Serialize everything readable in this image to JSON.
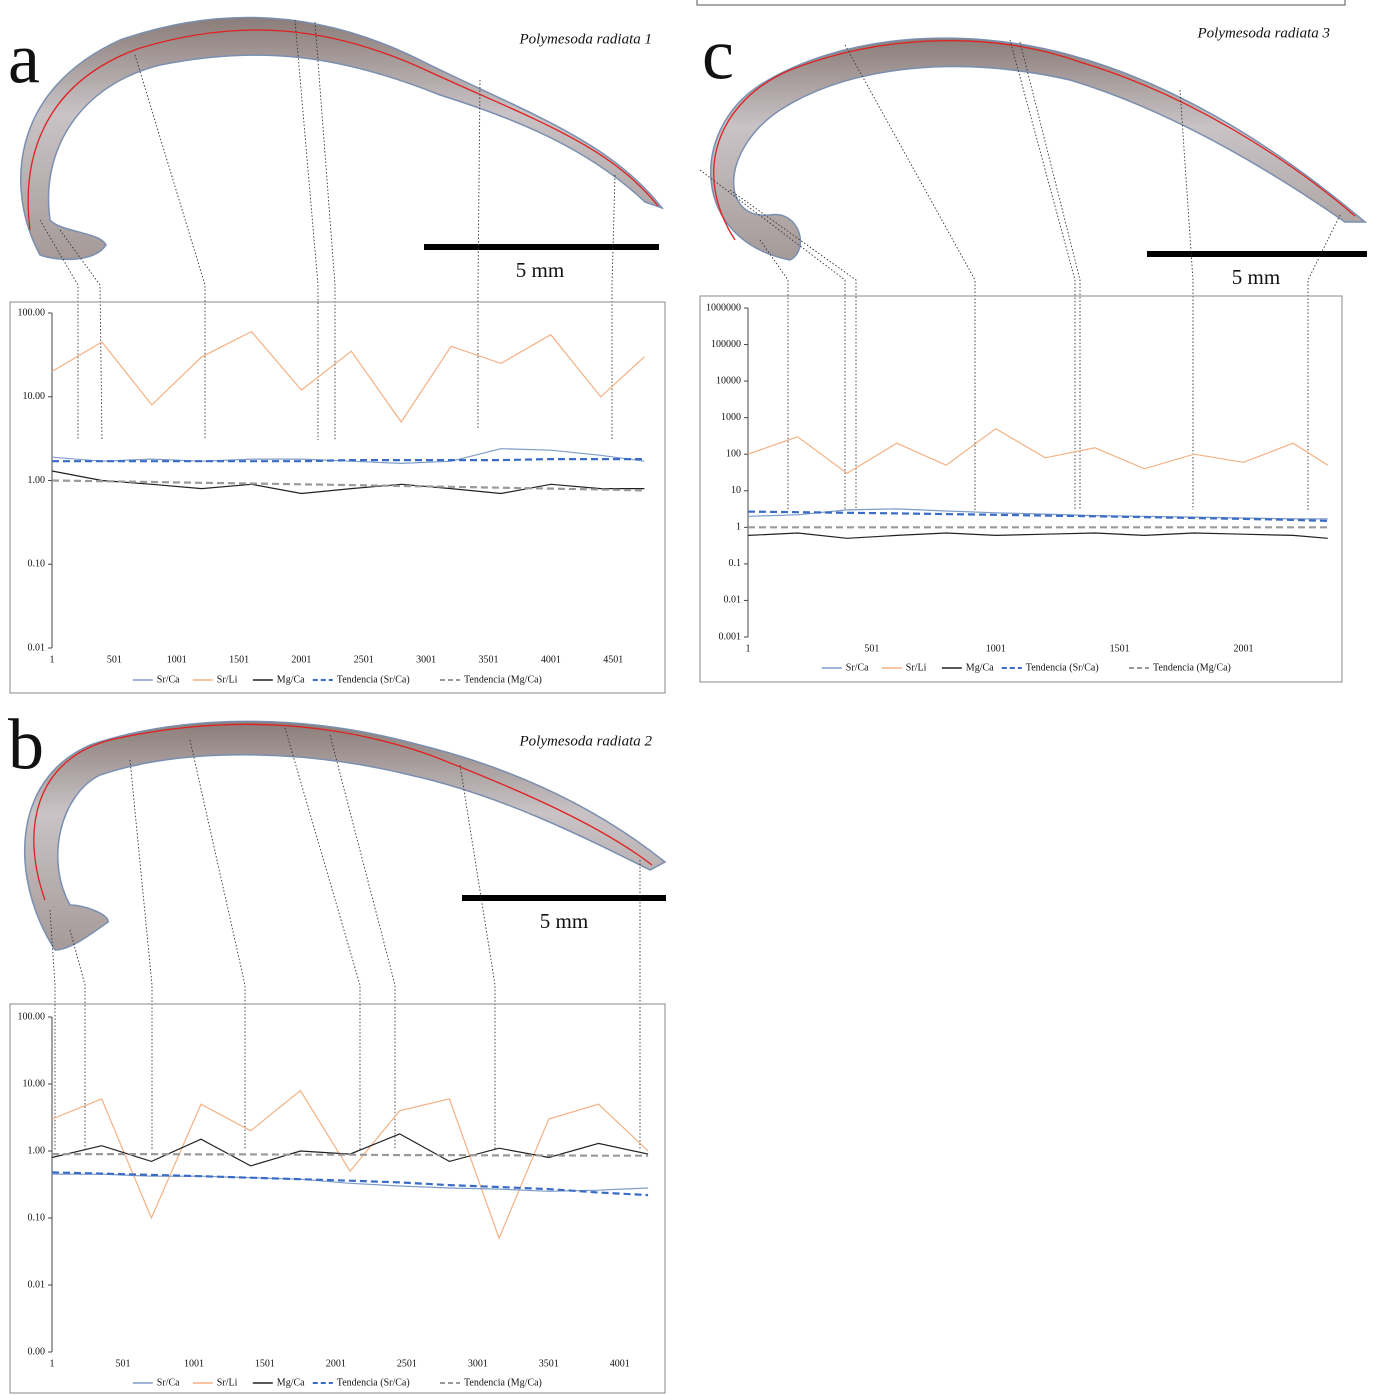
{
  "chart_data": [
    {
      "type": "line",
      "panel": "a",
      "specimen": "Polymesoda radiata 1",
      "scale_label": "5 mm",
      "yscale": "log",
      "xlim": [
        1,
        4780
      ],
      "ylim": [
        0.01,
        100
      ],
      "yticks": [
        {
          "value": 0.01,
          "label": "0.01"
        },
        {
          "value": 0.1,
          "label": "0.10"
        },
        {
          "value": 1,
          "label": "1.00"
        },
        {
          "value": 10,
          "label": "10.00"
        },
        {
          "value": 100,
          "label": "100.00"
        }
      ],
      "xticks": [
        1,
        501,
        1001,
        1501,
        2001,
        2501,
        3001,
        3501,
        4001,
        4501
      ],
      "x": [
        1,
        401,
        801,
        1201,
        1601,
        2001,
        2401,
        2801,
        3201,
        3601,
        4001,
        4401,
        4751
      ],
      "series": [
        {
          "name": "Sr/Ca",
          "color": "#7f9cc9",
          "style": "solid",
          "values": [
            1.9,
            1.7,
            1.8,
            1.7,
            1.8,
            1.8,
            1.7,
            1.6,
            1.7,
            2.4,
            2.3,
            2.0,
            1.7
          ]
        },
        {
          "name": "Sr/Li",
          "color": "#f4b183",
          "style": "solid",
          "values": [
            20,
            45,
            8,
            30,
            60,
            12,
            35,
            5,
            40,
            25,
            55,
            10,
            30
          ]
        },
        {
          "name": "Mg/Ca",
          "color": "#222222",
          "style": "solid",
          "values": [
            1.3,
            1.0,
            0.9,
            0.8,
            0.9,
            0.7,
            0.8,
            0.9,
            0.8,
            0.7,
            0.9,
            0.8,
            0.8
          ]
        },
        {
          "name": "Tendencia (Sr/Ca)",
          "color": "#3a6cc5",
          "style": "dashed",
          "values": [
            1.7,
            1.7,
            1.7,
            1.7,
            1.7,
            1.7,
            1.75,
            1.75,
            1.75,
            1.75,
            1.8,
            1.8,
            1.8
          ]
        },
        {
          "name": "Tendencia (Mg/Ca)",
          "color": "#9a9a9a",
          "style": "dashed",
          "values": [
            1.0,
            0.98,
            0.96,
            0.94,
            0.92,
            0.9,
            0.88,
            0.86,
            0.84,
            0.82,
            0.8,
            0.78,
            0.76
          ]
        }
      ]
    },
    {
      "type": "line",
      "panel": "b",
      "specimen": "Polymesoda radiata 2",
      "scale_label": "5 mm",
      "yscale": "log",
      "xlim": [
        1,
        4200
      ],
      "ylim": [
        0.001,
        100
      ],
      "yticks": [
        {
          "value": 0.001,
          "label": "0.00"
        },
        {
          "value": 0.01,
          "label": "0.01"
        },
        {
          "value": 0.1,
          "label": "0.10"
        },
        {
          "value": 1,
          "label": "1.00"
        },
        {
          "value": 10,
          "label": "10.00"
        },
        {
          "value": 100,
          "label": "100.00"
        }
      ],
      "xticks": [
        1,
        501,
        1001,
        1501,
        2001,
        2501,
        3001,
        3501,
        4001
      ],
      "x": [
        1,
        351,
        701,
        1051,
        1401,
        1751,
        2101,
        2451,
        2801,
        3151,
        3501,
        3851,
        4201
      ],
      "series": [
        {
          "name": "Sr/Ca",
          "color": "#7f9cc9",
          "style": "solid",
          "values": [
            0.45,
            0.45,
            0.42,
            0.42,
            0.4,
            0.38,
            0.33,
            0.3,
            0.28,
            0.27,
            0.25,
            0.26,
            0.28
          ]
        },
        {
          "name": "Sr/Li",
          "color": "#f4b183",
          "style": "solid",
          "values": [
            3,
            6,
            0.1,
            5,
            2,
            8,
            0.5,
            4,
            6,
            0.05,
            3,
            5,
            1
          ]
        },
        {
          "name": "Mg/Ca",
          "color": "#222222",
          "style": "solid",
          "values": [
            0.8,
            1.2,
            0.7,
            1.5,
            0.6,
            1.0,
            0.9,
            1.8,
            0.7,
            1.1,
            0.8,
            1.3,
            0.9
          ]
        },
        {
          "name": "Tendencia (Sr/Ca)",
          "color": "#3a6cc5",
          "style": "dashed",
          "values": [
            0.48,
            0.46,
            0.44,
            0.42,
            0.4,
            0.38,
            0.36,
            0.34,
            0.31,
            0.29,
            0.27,
            0.24,
            0.22
          ]
        },
        {
          "name": "Tendencia (Mg/Ca)",
          "color": "#9a9a9a",
          "style": "dashed",
          "values": [
            0.9,
            0.9,
            0.9,
            0.89,
            0.89,
            0.88,
            0.88,
            0.87,
            0.87,
            0.86,
            0.86,
            0.85,
            0.85
          ]
        }
      ]
    },
    {
      "type": "line",
      "panel": "c",
      "specimen": "Polymesoda radiata 3",
      "scale_label": "5 mm",
      "yscale": "log",
      "xlim": [
        1,
        2350
      ],
      "ylim": [
        0.001,
        1000000
      ],
      "yticks": [
        0.001,
        0.01,
        0.1,
        1,
        10,
        100,
        1000,
        10000,
        100000,
        1000000
      ],
      "xticks": [
        1,
        501,
        1001,
        1501,
        2001
      ],
      "x": [
        1,
        201,
        401,
        601,
        801,
        1001,
        1201,
        1401,
        1601,
        1801,
        2001,
        2201,
        2341
      ],
      "series": [
        {
          "name": "Sr/Ca",
          "color": "#7f9cc9",
          "style": "solid",
          "values": [
            2,
            2.2,
            3,
            3.2,
            2.8,
            2.5,
            2.3,
            2.1,
            2,
            1.9,
            1.8,
            1.7,
            1.7
          ]
        },
        {
          "name": "Sr/Li",
          "color": "#f4b183",
          "style": "solid",
          "values": [
            100,
            300,
            30,
            200,
            50,
            500,
            80,
            150,
            40,
            100,
            60,
            200,
            50
          ]
        },
        {
          "name": "Mg/Ca",
          "color": "#222222",
          "style": "solid",
          "values": [
            0.6,
            0.7,
            0.5,
            0.6,
            0.7,
            0.6,
            0.65,
            0.7,
            0.6,
            0.7,
            0.65,
            0.6,
            0.5
          ]
        },
        {
          "name": "Tendencia (Sr/Ca)",
          "color": "#3a6cc5",
          "style": "dashed",
          "values": [
            2.7,
            2.6,
            2.5,
            2.4,
            2.3,
            2.2,
            2.1,
            2.0,
            1.9,
            1.8,
            1.7,
            1.6,
            1.5
          ]
        },
        {
          "name": "Tendencia (Mg/Ca)",
          "color": "#9a9a9a",
          "style": "dashed",
          "values": [
            1.0,
            1.0,
            1.0,
            1.0,
            1.0,
            1.0,
            1.0,
            1.0,
            1.0,
            1.0,
            1.0,
            1.0,
            1.0
          ]
        }
      ]
    }
  ]
}
